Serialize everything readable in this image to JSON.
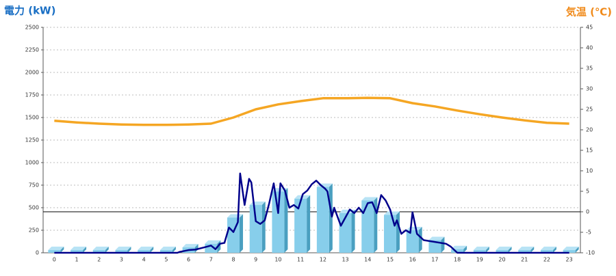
{
  "chart_data": {
    "type": "bar-line",
    "y_axis_title": "電力 (kW)",
    "y2_axis_title": "気温 (℃)",
    "categories": [
      "0",
      "1",
      "2",
      "3",
      "4",
      "5",
      "6",
      "7",
      "8",
      "9",
      "10",
      "11",
      "12",
      "13",
      "14",
      "15",
      "16",
      "17",
      "18",
      "19",
      "20",
      "21",
      "22",
      "23"
    ],
    "ylim": [
      0,
      2500
    ],
    "yticks": [
      0,
      250,
      500,
      750,
      1000,
      1250,
      1500,
      1750,
      2000,
      2250,
      2500
    ],
    "y2lim": [
      -10,
      45
    ],
    "y2ticks": [
      -10,
      -5,
      0,
      5,
      10,
      15,
      20,
      25,
      30,
      35,
      40,
      45
    ],
    "grid": true,
    "reference_line": {
      "axis": "y2",
      "value": 0
    },
    "series": [
      {
        "kind": "bar",
        "color": "#87ceeb",
        "values": [
          30,
          30,
          30,
          30,
          30,
          30,
          60,
          100,
          390,
          530,
          680,
          600,
          730,
          440,
          580,
          420,
          250,
          140,
          40,
          30,
          30,
          30,
          30,
          30
        ]
      },
      {
        "kind": "line",
        "color": "#00008b",
        "x": [
          0,
          1,
          2,
          3,
          4,
          5,
          5.5,
          5.6,
          6,
          6.3,
          6.7,
          7,
          7.2,
          7.4,
          7.6,
          7.8,
          8,
          8.2,
          8.3,
          8.5,
          8.7,
          8.8,
          9,
          9.2,
          9.4,
          9.6,
          9.8,
          10,
          10.1,
          10.3,
          10.5,
          10.7,
          10.9,
          11.1,
          11.3,
          11.5,
          11.7,
          11.9,
          12.1,
          12.2,
          12.4,
          12.5,
          12.8,
          13,
          13.2,
          13.4,
          13.6,
          13.8,
          14,
          14.2,
          14.4,
          14.6,
          14.8,
          15,
          15.2,
          15.3,
          15.5,
          15.7,
          15.9,
          16,
          16.2,
          16.5,
          17,
          17.5,
          17.7,
          18,
          19,
          20,
          21,
          22,
          23
        ],
        "values": [
          0,
          0,
          0,
          0,
          0,
          0,
          0,
          10,
          30,
          35,
          60,
          80,
          40,
          100,
          110,
          280,
          230,
          340,
          880,
          530,
          820,
          780,
          350,
          320,
          360,
          550,
          770,
          440,
          770,
          690,
          500,
          530,
          490,
          650,
          690,
          760,
          800,
          750,
          710,
          680,
          400,
          500,
          300,
          390,
          480,
          440,
          500,
          440,
          550,
          560,
          440,
          640,
          580,
          480,
          300,
          360,
          210,
          250,
          220,
          450,
          210,
          140,
          120,
          100,
          70,
          0,
          0,
          0,
          0,
          0,
          0
        ]
      },
      {
        "kind": "line",
        "axis": "y2",
        "color": "#f5a623",
        "values": [
          22.2,
          21.8,
          21.5,
          21.3,
          21.2,
          21.2,
          21.3,
          21.5,
          23,
          25,
          26.2,
          27,
          27.7,
          27.7,
          27.8,
          27.7,
          26.5,
          25.7,
          24.7,
          23.8,
          23,
          22.3,
          21.7,
          21.5
        ]
      }
    ]
  }
}
